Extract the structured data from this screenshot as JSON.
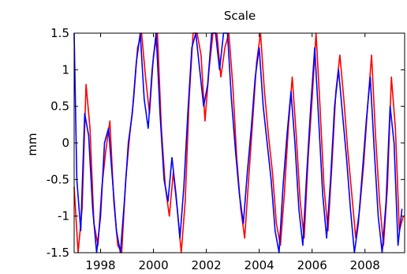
{
  "chart_data": {
    "type": "line",
    "title": "Scale",
    "xlabel": "",
    "ylabel": "mm",
    "xlim": [
      1997.0,
      2009.5
    ],
    "ylim": [
      -1.5,
      1.5
    ],
    "grid": false,
    "x_ticks": [
      1998,
      2000,
      2002,
      2004,
      2006,
      2008
    ],
    "y_ticks": [
      -1.5,
      -1,
      -0.5,
      0,
      0.5,
      1,
      1.5
    ],
    "x_tick_labels": [
      "1998",
      "2000",
      "2002",
      "2004",
      "2006",
      "2008"
    ],
    "y_tick_labels": [
      "-1.5",
      "-1",
      "-0.5",
      "0",
      "0.5",
      "1",
      "1.5"
    ],
    "series": [
      {
        "color": "#ff0000",
        "x": [
          1997.0,
          1997.15,
          1997.3,
          1997.45,
          1997.6,
          1997.75,
          1997.9,
          1998.05,
          1998.2,
          1998.35,
          1998.5,
          1998.65,
          1998.8,
          1998.95,
          1999.1,
          1999.25,
          1999.4,
          1999.55,
          1999.7,
          1999.85,
          2000.0,
          2000.15,
          2000.3,
          2000.45,
          2000.6,
          2000.75,
          2000.9,
          2001.05,
          2001.2,
          2001.35,
          2001.5,
          2001.65,
          2001.8,
          2001.95,
          2002.1,
          2002.25,
          2002.4,
          2002.55,
          2002.7,
          2002.85,
          2003.0,
          2003.15,
          2003.3,
          2003.45,
          2003.6,
          2003.75,
          2003.9,
          2004.05,
          2004.2,
          2004.35,
          2004.5,
          2004.65,
          2004.8,
          2004.95,
          2005.1,
          2005.25,
          2005.4,
          2005.55,
          2005.7,
          2005.85,
          2006.0,
          2006.15,
          2006.3,
          2006.45,
          2006.6,
          2006.75,
          2006.9,
          2007.05,
          2007.2,
          2007.35,
          2007.5,
          2007.65,
          2007.8,
          2007.95,
          2008.1,
          2008.25,
          2008.4,
          2008.55,
          2008.7,
          2008.85,
          2009.0,
          2009.15,
          2009.3,
          2009.45
        ],
        "y": [
          -0.6,
          -1.5,
          -0.9,
          0.8,
          0.2,
          -1.1,
          -1.4,
          -0.6,
          -0.1,
          0.3,
          -0.8,
          -1.4,
          -1.5,
          -0.5,
          0.1,
          0.6,
          1.3,
          1.5,
          0.9,
          0.4,
          1.2,
          1.5,
          0.2,
          -0.6,
          -1.0,
          -0.4,
          -0.9,
          -1.5,
          -0.8,
          0.6,
          1.5,
          1.5,
          1.2,
          0.3,
          1.0,
          1.5,
          1.5,
          0.9,
          1.3,
          1.5,
          0.8,
          -0.2,
          -0.9,
          -1.3,
          -0.5,
          0.3,
          1.1,
          1.5,
          0.7,
          0.1,
          -0.4,
          -1.1,
          -1.4,
          -0.7,
          0.2,
          0.9,
          0.1,
          -0.8,
          -1.3,
          -0.2,
          0.6,
          1.5,
          0.5,
          -0.6,
          -1.2,
          -0.3,
          0.7,
          1.2,
          0.6,
          -0.1,
          -0.7,
          -1.3,
          -0.9,
          -0.3,
          0.5,
          1.2,
          0.1,
          -0.8,
          -1.4,
          -0.6,
          0.9,
          0.2,
          -1.2,
          -1.0
        ]
      },
      {
        "color": "#0000ff",
        "x": [
          1997.0,
          1997.1,
          1997.25,
          1997.4,
          1997.55,
          1997.7,
          1997.85,
          1998.0,
          1998.15,
          1998.3,
          1998.45,
          1998.6,
          1998.75,
          1998.9,
          1999.05,
          1999.2,
          1999.35,
          1999.5,
          1999.65,
          1999.8,
          1999.95,
          2000.1,
          2000.25,
          2000.4,
          2000.55,
          2000.7,
          2000.85,
          2001.0,
          2001.15,
          2001.3,
          2001.45,
          2001.6,
          2001.75,
          2001.9,
          2002.05,
          2002.2,
          2002.35,
          2002.5,
          2002.65,
          2002.8,
          2002.95,
          2003.1,
          2003.25,
          2003.4,
          2003.55,
          2003.7,
          2003.85,
          2004.0,
          2004.15,
          2004.3,
          2004.45,
          2004.6,
          2004.75,
          2004.9,
          2005.05,
          2005.2,
          2005.35,
          2005.5,
          2005.65,
          2005.8,
          2005.95,
          2006.1,
          2006.25,
          2006.4,
          2006.55,
          2006.7,
          2006.85,
          2007.0,
          2007.15,
          2007.3,
          2007.45,
          2007.6,
          2007.75,
          2007.9,
          2008.05,
          2008.2,
          2008.35,
          2008.5,
          2008.65,
          2008.8,
          2008.95,
          2009.1,
          2009.25,
          2009.4
        ],
        "y": [
          1.5,
          -0.5,
          -1.2,
          0.4,
          0.1,
          -0.9,
          -1.5,
          -1.0,
          0.0,
          0.2,
          -0.5,
          -1.2,
          -1.5,
          -0.8,
          0.0,
          0.4,
          1.1,
          1.5,
          0.6,
          0.2,
          1.0,
          1.5,
          0.4,
          -0.5,
          -0.8,
          -0.2,
          -0.7,
          -1.3,
          -0.6,
          0.4,
          1.3,
          1.5,
          1.0,
          0.5,
          0.8,
          1.5,
          1.5,
          1.0,
          1.5,
          1.5,
          0.6,
          -0.1,
          -0.7,
          -1.1,
          -0.4,
          0.2,
          0.9,
          1.3,
          0.5,
          0.0,
          -0.5,
          -1.2,
          -1.5,
          -0.6,
          0.1,
          0.7,
          0.0,
          -0.9,
          -1.4,
          -0.4,
          0.5,
          1.3,
          0.3,
          -0.7,
          -1.3,
          -0.5,
          0.5,
          1.0,
          0.4,
          -0.2,
          -0.9,
          -1.5,
          -1.1,
          -0.4,
          0.3,
          0.9,
          -0.1,
          -1.0,
          -1.5,
          -0.8,
          0.5,
          0.0,
          -1.4,
          -0.9
        ]
      }
    ]
  }
}
